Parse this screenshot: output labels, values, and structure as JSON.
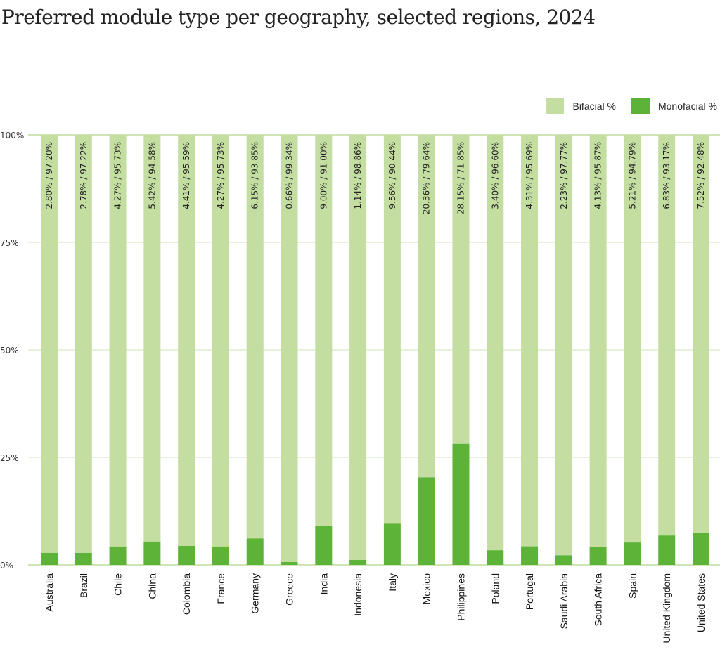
{
  "chart_data": {
    "type": "bar",
    "stacked": true,
    "title": "Preferred module type per geography, selected regions, 2024",
    "xlabel": "",
    "ylabel": "",
    "ylim": [
      0,
      100
    ],
    "yticks": [
      "0%",
      "25%",
      "50%",
      "75%",
      "100%"
    ],
    "grid": true,
    "legend_position": "top-right",
    "categories": [
      "Australia",
      "Brazil",
      "Chile",
      "China",
      "Colombia",
      "France",
      "Germany",
      "Greece",
      "India",
      "Indonesia",
      "Italy",
      "Mexico",
      "Philippines",
      "Poland",
      "Portugal",
      "Saudi Arabia",
      "South Africa",
      "Spain",
      "United Kingdom",
      "United States"
    ],
    "series": [
      {
        "name": "Monofacial %",
        "color": "#5db337",
        "values": [
          2.8,
          2.78,
          4.27,
          5.42,
          4.41,
          4.27,
          6.15,
          0.66,
          9.0,
          1.14,
          9.56,
          20.36,
          28.15,
          3.4,
          4.31,
          2.23,
          4.13,
          5.21,
          6.83,
          7.52
        ]
      },
      {
        "name": "Bifacial %",
        "color": "#c4dea2",
        "values": [
          97.2,
          97.22,
          95.73,
          94.58,
          95.59,
          95.73,
          93.85,
          99.34,
          91.0,
          98.86,
          90.44,
          79.64,
          71.85,
          96.6,
          95.69,
          97.77,
          95.87,
          94.79,
          93.17,
          92.48
        ]
      }
    ],
    "data_labels": [
      "2.80% / 97.20%",
      "2.78% / 97.22%",
      "4.27% / 95.73%",
      "5.42% / 94.58%",
      "4.41% / 95.59%",
      "4.27% / 95.73%",
      "6.15% / 93.85%",
      "0.66% / 99.34%",
      "9.00% / 91.00%",
      "1.14% / 98.86%",
      "9.56% / 90.44%",
      "20.36% / 79.64%",
      "28.15% / 71.85%",
      "3.40% / 96.60%",
      "4.31% / 95.69%",
      "2.23% / 97.77%",
      "4.13% / 95.87%",
      "5.21% / 94.79%",
      "6.83% / 93.17%",
      "7.52% / 92.48%"
    ]
  }
}
